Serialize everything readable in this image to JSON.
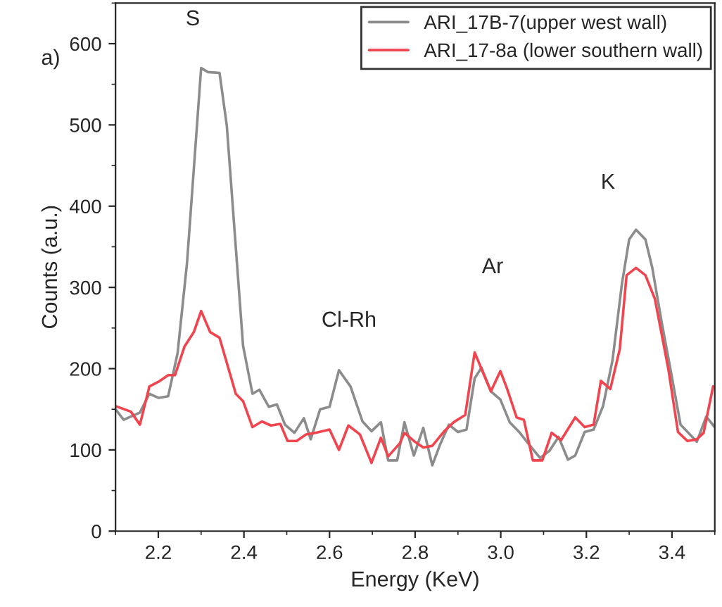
{
  "chart_data": {
    "type": "line",
    "xlabel": "Energy (KeV)",
    "ylabel": "Counts (a.u.)",
    "xlim": [
      2.1,
      3.5
    ],
    "ylim": [
      0,
      650
    ],
    "xticks": [
      2.2,
      2.4,
      2.6,
      2.8,
      {
        "value": 3,
        "label": "3.0"
      },
      3.2,
      3.4
    ],
    "yticks": [
      0,
      100,
      200,
      300,
      400,
      500,
      600
    ],
    "grid": false,
    "legend": "top right",
    "marker": "none",
    "line_style": "solid",
    "annotations": [
      "a)",
      "S",
      "Cl-Rh",
      "Ar",
      "K"
    ],
    "series": [
      {
        "name": "ARI_17B-7(upper west wall)",
        "color": "#8c8c8c",
        "x": [
          2.1,
          2.119,
          2.157,
          2.179,
          2.201,
          2.223,
          2.245,
          2.267,
          2.3,
          2.316,
          2.343,
          2.36,
          2.398,
          2.42,
          2.436,
          2.458,
          2.477,
          2.496,
          2.518,
          2.54,
          2.556,
          2.578,
          2.6,
          2.622,
          2.649,
          2.677,
          2.698,
          2.72,
          2.737,
          2.758,
          2.775,
          2.797,
          2.819,
          2.84,
          2.857,
          2.879,
          2.9,
          2.92,
          2.939,
          2.955,
          2.977,
          2.999,
          3.021,
          3.043,
          3.064,
          3.092,
          3.114,
          3.135,
          3.157,
          3.174,
          3.196,
          3.217,
          3.239,
          3.261,
          3.283,
          3.3,
          3.316,
          3.338,
          3.354,
          3.376,
          3.398,
          3.42,
          3.442,
          3.458,
          3.48,
          3.5
        ],
        "values": [
          150,
          137,
          146,
          169,
          164,
          166,
          219,
          330,
          570,
          565,
          564,
          499,
          228,
          169,
          174,
          153,
          156,
          131,
          121,
          139,
          113,
          150,
          153,
          198,
          178,
          135,
          123,
          134,
          87,
          87,
          134,
          93,
          127,
          81,
          105,
          131,
          122,
          125,
          188,
          201,
          172,
          162,
          134,
          122,
          108,
          90,
          99,
          116,
          88,
          93,
          122,
          125,
          154,
          210,
          304,
          359,
          371,
          359,
          324,
          257,
          195,
          131,
          119,
          110,
          141,
          128
        ]
      },
      {
        "name": "ARI_17-8a (lower southern wall)",
        "color": "#f0454f",
        "x": [
          2.1,
          2.136,
          2.157,
          2.179,
          2.201,
          2.223,
          2.239,
          2.261,
          2.283,
          2.3,
          2.321,
          2.343,
          2.365,
          2.381,
          2.398,
          2.42,
          2.442,
          2.463,
          2.485,
          2.502,
          2.523,
          2.545,
          2.567,
          2.6,
          2.622,
          2.644,
          2.671,
          2.698,
          2.72,
          2.737,
          2.764,
          2.775,
          2.797,
          2.819,
          2.84,
          2.868,
          2.89,
          2.917,
          2.939,
          2.961,
          2.977,
          2.999,
          3.015,
          3.037,
          3.054,
          3.075,
          3.097,
          3.119,
          3.141,
          3.174,
          3.196,
          3.217,
          3.234,
          3.256,
          3.278,
          3.294,
          3.316,
          3.338,
          3.36,
          3.392,
          3.414,
          3.436,
          3.458,
          3.474,
          3.496
        ],
        "values": [
          154,
          147,
          131,
          178,
          184,
          192,
          192,
          227,
          245,
          271,
          245,
          238,
          198,
          169,
          160,
          128,
          135,
          130,
          132,
          111,
          111,
          119,
          121,
          125,
          100,
          130,
          119,
          84,
          115,
          92,
          108,
          121,
          111,
          103,
          105,
          123,
          134,
          143,
          220,
          192,
          172,
          197,
          175,
          140,
          137,
          87,
          87,
          121,
          112,
          140,
          128,
          131,
          185,
          175,
          224,
          315,
          324,
          315,
          286,
          198,
          122,
          111,
          113,
          121,
          178
        ]
      }
    ]
  }
}
